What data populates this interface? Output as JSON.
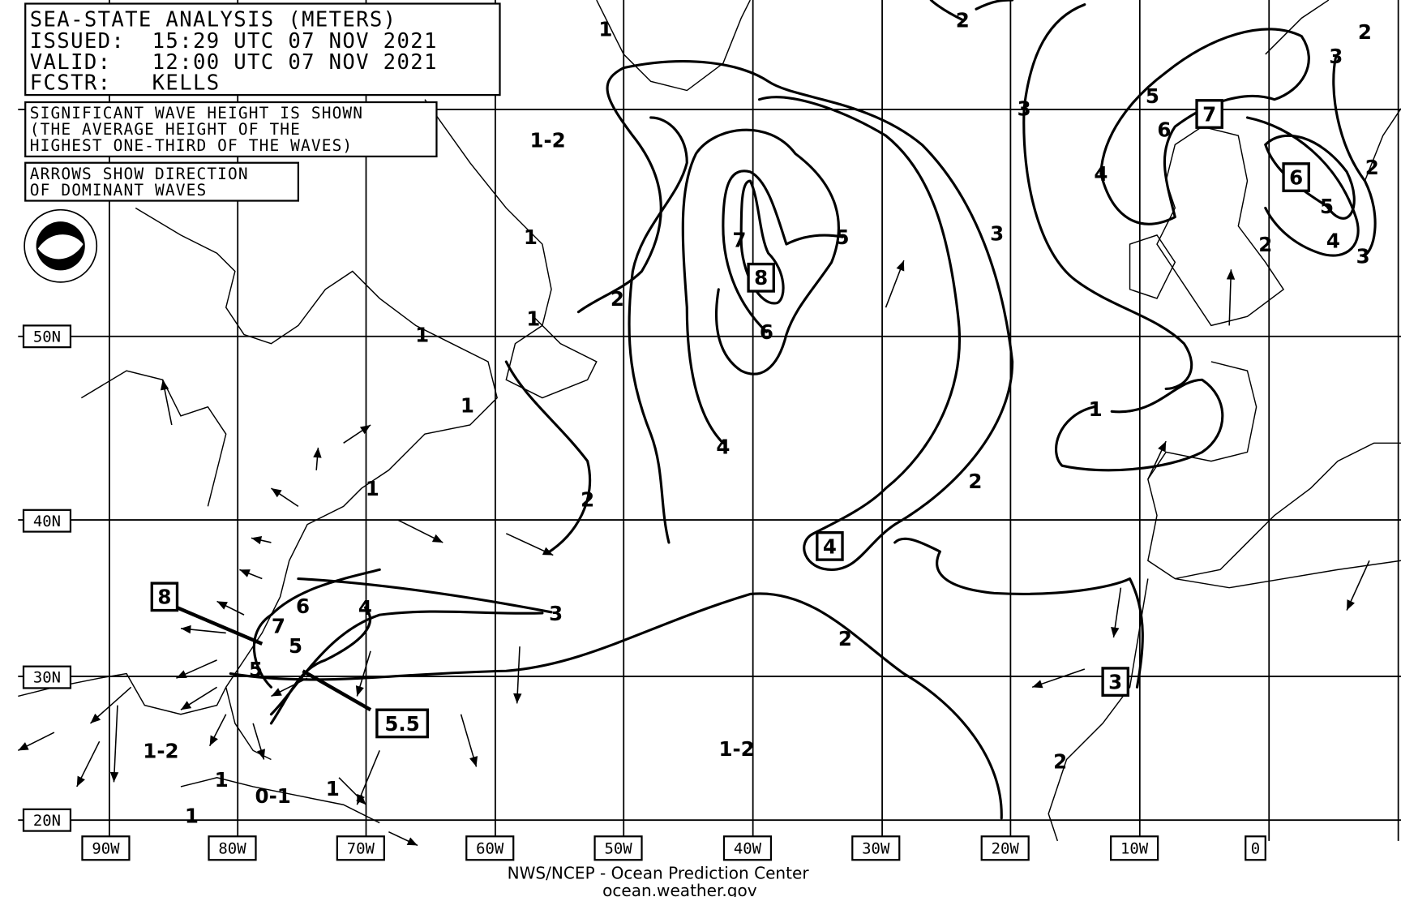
{
  "header": {
    "title": "SEA-STATE ANALYSIS (METERS)",
    "issued": "ISSUED:  15:29 UTC 07 NOV 2021",
    "valid": "VALID:   12:00 UTC 07 NOV 2021",
    "forecaster": "FCSTR:   KELLS"
  },
  "notes": {
    "wave_height": [
      "SIGNIFICANT WAVE HEIGHT IS SHOWN",
      "(THE AVERAGE HEIGHT OF THE",
      "HIGHEST ONE-THIRD OF THE WAVES)"
    ],
    "arrows": [
      "ARROWS SHOW DIRECTION",
      "OF DOMINANT WAVES"
    ]
  },
  "logo": {
    "name": "NOAA",
    "icon": "noaa-logo"
  },
  "latitude_labels": [
    "50N",
    "40N",
    "30N",
    "20N"
  ],
  "longitude_labels": [
    "90W",
    "80W",
    "70W",
    "60W",
    "50W",
    "40W",
    "30W",
    "20W",
    "10W",
    "0"
  ],
  "region_labels": [
    "1-2",
    "1-2",
    "1-2",
    "0-1"
  ],
  "contour_labels": [
    "1",
    "1",
    "1",
    "1",
    "1",
    "1",
    "1",
    "1",
    "1",
    "1",
    "2",
    "2",
    "2",
    "2",
    "2",
    "2",
    "2",
    "2",
    "2",
    "3",
    "3",
    "3",
    "3",
    "3",
    "4",
    "4",
    "4",
    "4",
    "5",
    "5",
    "5",
    "5",
    "5",
    "6",
    "6",
    "6",
    "7",
    "7"
  ],
  "max_labels": [
    "8",
    "7",
    "6",
    "4",
    "8",
    "5.5",
    "3"
  ],
  "footer": {
    "line1": "NWS/NCEP - Ocean Prediction Center",
    "line2": "ocean.weather.gov"
  }
}
